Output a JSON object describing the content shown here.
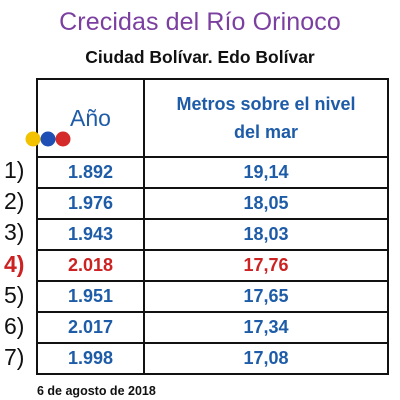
{
  "title": "Crecidas del Río Orinoco",
  "subtitle": "Ciudad Bolívar. Edo Bolívar",
  "table": {
    "headers": {
      "year": "Año",
      "meters_line1": "Metros sobre el nivel",
      "meters_line2": "del mar"
    },
    "rows": [
      {
        "rank": "1)",
        "year": "1.892",
        "meters": "19,14"
      },
      {
        "rank": "2)",
        "year": "1.976",
        "meters": "18,05"
      },
      {
        "rank": "3)",
        "year": "1.943",
        "meters": "18,03"
      },
      {
        "rank": "4)",
        "year": "2.018",
        "meters": "17,76",
        "highlight": true
      },
      {
        "rank": "5)",
        "year": "1.951",
        "meters": "17,65"
      },
      {
        "rank": "6)",
        "year": "2.017",
        "meters": "17,34"
      },
      {
        "rank": "7)",
        "year": "1.998",
        "meters": "17,08"
      }
    ]
  },
  "date": "6 de agosto de 2018",
  "colors": {
    "title": "#7b3fa0",
    "header_text": "#1e5ca8",
    "value_text": "#1e5ca8",
    "highlight": "#cc2222",
    "logo_balls": [
      "#f2c200",
      "#1f4fb4",
      "#d42a2a"
    ]
  },
  "logo_icon": "tricolor-balls-logo"
}
